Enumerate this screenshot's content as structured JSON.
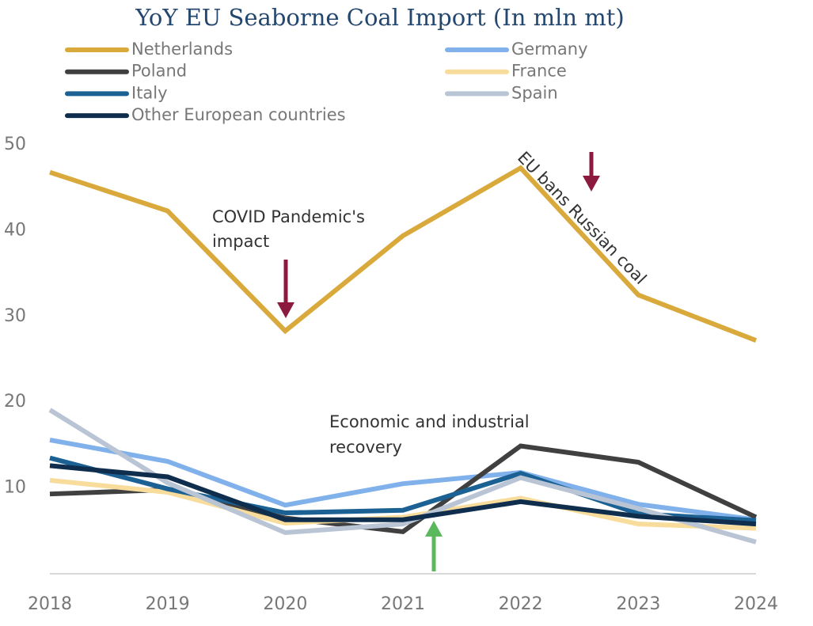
{
  "chart_data": {
    "type": "line",
    "title": "YoY EU Seaborne Coal Import (In mln mt)",
    "x": [
      2018,
      2019,
      2020,
      2021,
      2022,
      2023,
      2024
    ],
    "xlim": [
      2018,
      2024
    ],
    "xticks": [
      2018,
      2019,
      2020,
      2021,
      2022,
      2023,
      2024
    ],
    "ylim": [
      0,
      50
    ],
    "yticks": [
      10,
      20,
      30,
      40,
      50
    ],
    "grid": false,
    "legend_position": "top",
    "series": [
      {
        "name": "Netherlands",
        "color": "#d9a93c",
        "values": [
          46.8,
          42.3,
          28.3,
          39.4,
          47.3,
          32.5,
          27.2
        ]
      },
      {
        "name": "Germany",
        "color": "#80b1eb",
        "values": [
          15.6,
          13.1,
          8.0,
          10.5,
          11.8,
          8.1,
          6.3
        ]
      },
      {
        "name": "Poland",
        "color": "#404040",
        "values": [
          9.3,
          9.8,
          6.5,
          4.9,
          14.9,
          13.0,
          6.6
        ]
      },
      {
        "name": "France",
        "color": "#f8dc9b",
        "values": [
          10.9,
          9.5,
          5.9,
          6.6,
          8.8,
          5.8,
          5.3
        ]
      },
      {
        "name": "Italy",
        "color": "#1b6193",
        "values": [
          13.5,
          9.9,
          7.1,
          7.4,
          11.7,
          7.0,
          6.2
        ]
      },
      {
        "name": "Spain",
        "color": "#b9c4d4",
        "values": [
          19.1,
          10.6,
          4.8,
          5.8,
          11.2,
          7.6,
          3.7
        ]
      },
      {
        "name": "Other European countries",
        "color": "#0f2d4d",
        "values": [
          12.6,
          11.3,
          6.3,
          6.3,
          8.4,
          6.7,
          5.8
        ]
      }
    ],
    "annotations": [
      {
        "lines": [
          "COVID Pandemic's",
          "impact"
        ]
      },
      {
        "lines": [
          "EU bans Russian coal"
        ]
      },
      {
        "lines": [
          "Economic and industrial",
          "recovery"
        ]
      }
    ]
  }
}
